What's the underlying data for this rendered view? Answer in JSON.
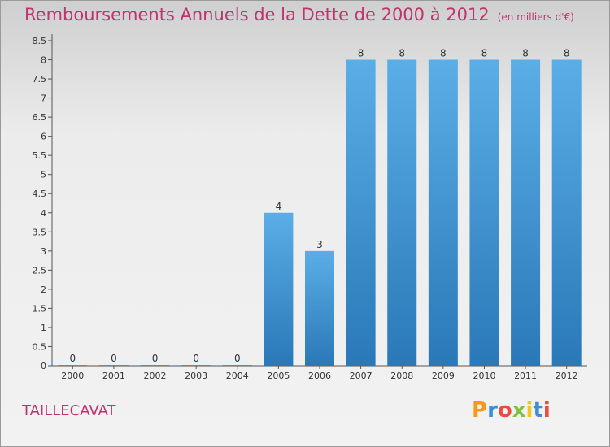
{
  "title": "Remboursements Annuels de la Dette de 2000 à 2012",
  "unit": "(en milliers d'€)",
  "commune": "TAILLECAVAT",
  "brand": "Proxiti",
  "colors": {
    "title": "#c0336e",
    "bar_top": "#5aaee6",
    "bar_bottom": "#2a78b8"
  },
  "chart_data": {
    "type": "bar",
    "categories": [
      "2000",
      "2001",
      "2002",
      "2003",
      "2004",
      "2005",
      "2006",
      "2007",
      "2008",
      "2009",
      "2010",
      "2011",
      "2012"
    ],
    "values": [
      0,
      0,
      0,
      0,
      0,
      4,
      3,
      8,
      8,
      8,
      8,
      8,
      8
    ],
    "data_labels": [
      "0",
      "0",
      "0",
      "0",
      "0",
      "4",
      "3",
      "8",
      "8",
      "8",
      "8",
      "8",
      "8"
    ],
    "ylim": [
      0,
      8.5
    ],
    "yticks": [
      0,
      0.5,
      1,
      1.5,
      2,
      2.5,
      3,
      3.5,
      4,
      4.5,
      5,
      5.5,
      6,
      6.5,
      7,
      7.5,
      8,
      8.5
    ],
    "ytick_labels": [
      "0",
      "0.5",
      "1",
      "1.5",
      "2",
      "2.5",
      "3",
      "3.5",
      "4",
      "4.5",
      "5",
      "5.5",
      "6",
      "6.5",
      "7",
      "7.5",
      "8",
      "8.5"
    ],
    "grid": false
  }
}
